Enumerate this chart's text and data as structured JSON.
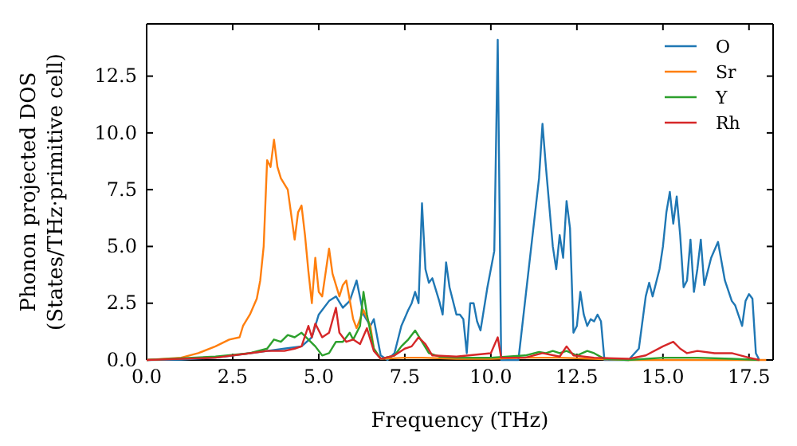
{
  "chart_data": {
    "type": "line",
    "xlabel": "Frequency (THz)",
    "ylabel": "Phonon projected DOS\n(States/THz·primitive cell)",
    "xlim": [
      0,
      18.2
    ],
    "ylim": [
      0,
      14.8
    ],
    "xticks": [
      {
        "value": 0,
        "label": "0.0"
      },
      2.5,
      {
        "value": 5,
        "label": "5.0"
      },
      7.5,
      {
        "value": 10,
        "label": "10.0"
      },
      12.5,
      {
        "value": 15,
        "label": "15.0"
      },
      17.5
    ],
    "yticks": [
      {
        "value": 0,
        "label": "0.0"
      },
      2.5,
      {
        "value": 5,
        "label": "5.0"
      },
      7.5,
      {
        "value": 10,
        "label": "10.0"
      },
      12.5
    ],
    "grid": false,
    "legend": "top right",
    "marker": "none",
    "line_style": "solid",
    "series": [
      {
        "name": "O",
        "color": "#1f77b4",
        "x": [
          0,
          1,
          2,
          3,
          3.5,
          4,
          4.5,
          4.8,
          5.0,
          5.3,
          5.5,
          5.7,
          5.9,
          6.1,
          6.3,
          6.5,
          6.6,
          6.8,
          7.0,
          7.2,
          7.4,
          7.6,
          7.7,
          7.8,
          7.9,
          8.0,
          8.1,
          8.2,
          8.3,
          8.5,
          8.6,
          8.7,
          8.8,
          9.0,
          9.1,
          9.2,
          9.3,
          9.4,
          9.5,
          9.6,
          9.7,
          9.9,
          10.1,
          10.2,
          10.3,
          10.8,
          11.1,
          11.4,
          11.5,
          11.6,
          11.8,
          11.9,
          12.0,
          12.1,
          12.2,
          12.3,
          12.4,
          12.5,
          12.6,
          12.7,
          12.8,
          12.9,
          13.0,
          13.1,
          13.2,
          13.3,
          14.0,
          14.3,
          14.5,
          14.6,
          14.7,
          14.9,
          15.0,
          15.1,
          15.2,
          15.3,
          15.4,
          15.5,
          15.6,
          15.7,
          15.8,
          15.9,
          16.0,
          16.1,
          16.2,
          16.4,
          16.6,
          16.8,
          17.0,
          17.1,
          17.3,
          17.4,
          17.5,
          17.6,
          17.7,
          17.8
        ],
        "values": [
          0,
          0.02,
          0.1,
          0.3,
          0.4,
          0.5,
          0.6,
          1.0,
          2.0,
          2.6,
          2.8,
          2.3,
          2.6,
          3.5,
          2.0,
          1.5,
          1.8,
          0.2,
          0,
          0.3,
          1.5,
          2.2,
          2.5,
          3.0,
          2.5,
          6.9,
          4.0,
          3.4,
          3.6,
          2.6,
          2.0,
          4.3,
          3.2,
          2.0,
          2.0,
          1.8,
          0.3,
          2.5,
          2.5,
          1.7,
          1.3,
          3.2,
          4.8,
          14.1,
          0,
          0,
          4.0,
          8.0,
          10.4,
          8.5,
          5.0,
          4.0,
          5.5,
          4.5,
          7.0,
          5.8,
          1.2,
          1.5,
          3.0,
          2.0,
          1.5,
          1.8,
          1.7,
          2.0,
          1.7,
          0,
          0,
          0.5,
          2.8,
          3.4,
          2.8,
          4.0,
          5.0,
          6.5,
          7.4,
          6.0,
          7.2,
          5.5,
          3.2,
          3.5,
          5.3,
          3.0,
          4.0,
          5.3,
          3.3,
          4.5,
          5.2,
          3.5,
          2.6,
          2.4,
          1.5,
          2.6,
          2.9,
          2.7,
          0.3,
          0
        ]
      },
      {
        "name": "Sr",
        "color": "#ff7f0e",
        "x": [
          0,
          1.0,
          1.5,
          2.0,
          2.4,
          2.7,
          2.8,
          3.0,
          3.2,
          3.3,
          3.4,
          3.5,
          3.6,
          3.7,
          3.8,
          3.9,
          4.1,
          4.3,
          4.4,
          4.5,
          4.6,
          4.7,
          4.8,
          4.9,
          5.0,
          5.1,
          5.3,
          5.4,
          5.6,
          5.7,
          5.8,
          6.0,
          6.1,
          6.3,
          6.5,
          6.6,
          6.8,
          7.5,
          8.0,
          9,
          10,
          11,
          12,
          13,
          14,
          18
        ],
        "values": [
          0,
          0.1,
          0.3,
          0.6,
          0.9,
          1.0,
          1.5,
          2.0,
          2.7,
          3.5,
          5.0,
          8.8,
          8.5,
          9.7,
          8.5,
          8.0,
          7.5,
          5.3,
          6.5,
          6.8,
          5.5,
          3.9,
          2.5,
          4.5,
          3.0,
          2.8,
          4.9,
          3.8,
          2.8,
          3.3,
          3.5,
          1.8,
          1.4,
          2.2,
          1.5,
          0.5,
          0.05,
          0.1,
          0.1,
          0.05,
          0.05,
          0.1,
          0.1,
          0.05,
          0,
          0
        ]
      },
      {
        "name": "Y",
        "color": "#2ca02c",
        "x": [
          0,
          2,
          3,
          3.5,
          3.7,
          3.9,
          4.1,
          4.3,
          4.5,
          4.7,
          4.9,
          5.1,
          5.3,
          5.5,
          5.7,
          5.9,
          6.0,
          6.2,
          6.3,
          6.4,
          6.6,
          6.8,
          7.2,
          7.4,
          7.6,
          7.8,
          8.0,
          8.2,
          8.5,
          9,
          10,
          11,
          11.4,
          11.6,
          11.8,
          12.0,
          12.2,
          12.5,
          12.8,
          13.0,
          13.3,
          14,
          15,
          16,
          17,
          17.8
        ],
        "values": [
          0,
          0.15,
          0.3,
          0.5,
          0.9,
          0.8,
          1.1,
          1.0,
          1.2,
          0.9,
          0.6,
          0.2,
          0.3,
          0.8,
          0.8,
          1.2,
          0.9,
          1.5,
          3.0,
          2.0,
          0.5,
          0.05,
          0.2,
          0.6,
          0.9,
          1.3,
          0.8,
          0.3,
          0.15,
          0.1,
          0.1,
          0.2,
          0.35,
          0.3,
          0.4,
          0.3,
          0.4,
          0.2,
          0.4,
          0.3,
          0.05,
          0,
          0.1,
          0.1,
          0.05,
          0
        ]
      },
      {
        "name": "Rh",
        "color": "#d62728",
        "x": [
          0,
          2,
          3,
          3.5,
          4.0,
          4.3,
          4.5,
          4.7,
          4.8,
          4.9,
          5.1,
          5.3,
          5.5,
          5.6,
          5.8,
          6.0,
          6.2,
          6.4,
          6.6,
          6.8,
          7.2,
          7.5,
          7.7,
          7.9,
          8.1,
          8.3,
          9,
          10,
          10.2,
          10.3,
          11,
          11.5,
          12,
          12.2,
          12.4,
          13,
          14,
          14.5,
          15,
          15.3,
          15.5,
          15.7,
          16,
          16.5,
          17,
          17.5,
          17.8
        ],
        "values": [
          0,
          0.1,
          0.3,
          0.4,
          0.4,
          0.5,
          0.6,
          1.5,
          1.0,
          1.6,
          1.0,
          1.2,
          2.3,
          1.2,
          0.8,
          0.9,
          0.7,
          1.4,
          0.4,
          0.05,
          0.2,
          0.5,
          0.6,
          1.0,
          0.7,
          0.2,
          0.15,
          0.3,
          1.0,
          0.1,
          0.1,
          0.3,
          0.15,
          0.6,
          0.2,
          0.1,
          0.05,
          0.2,
          0.6,
          0.8,
          0.5,
          0.3,
          0.4,
          0.3,
          0.3,
          0.1,
          0
        ]
      }
    ]
  }
}
